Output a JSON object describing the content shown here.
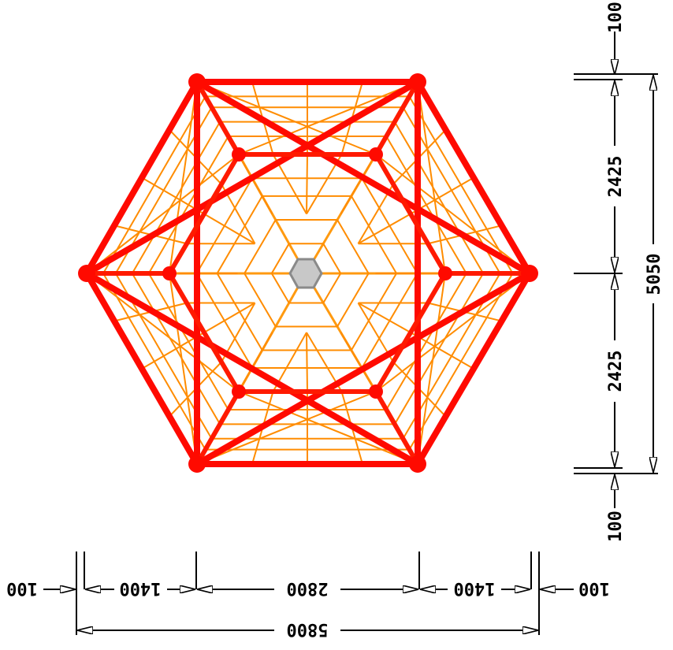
{
  "colors": {
    "frame": "#ff0a00",
    "net": "#ff8c00",
    "hub": "#bdbdbd",
    "dimension": "#000000"
  },
  "dimensions": {
    "vertical": {
      "top_margin": "100",
      "upper_half": "2425",
      "total_height": "5050",
      "lower_half": "2425",
      "bottom_margin": "100"
    },
    "horizontal": {
      "left_margin": "100",
      "left_segment": "1400",
      "middle_segment": "2800",
      "right_segment": "1400",
      "right_margin": "100",
      "total_width": "5800"
    }
  }
}
